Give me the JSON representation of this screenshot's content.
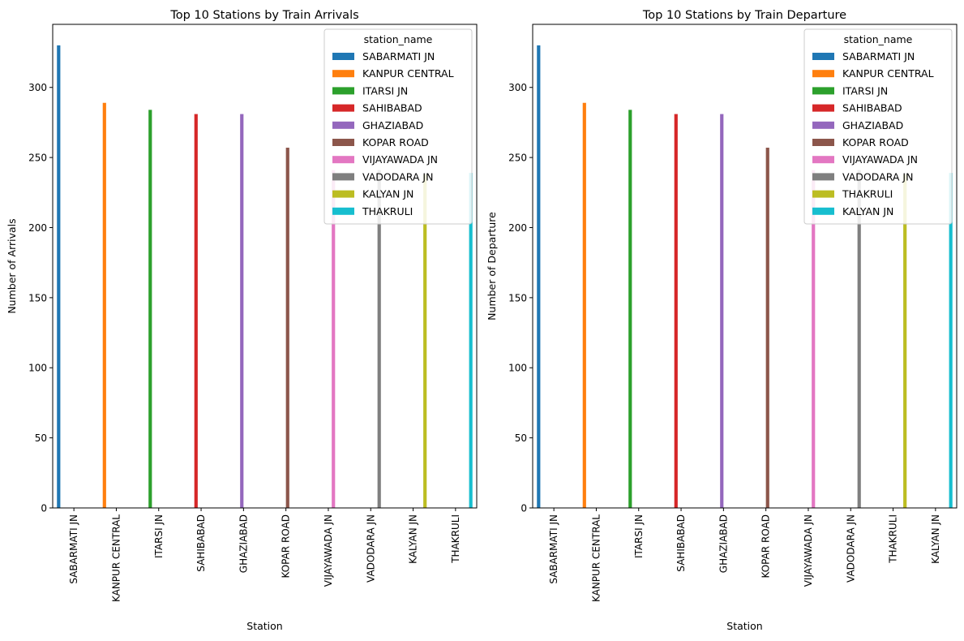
{
  "chart_data": [
    {
      "type": "bar",
      "title": "Top 10 Stations by Train Arrivals",
      "xlabel": "Station",
      "ylabel": "Number of Arrivals",
      "ylim": [
        0,
        345
      ],
      "yticks": [
        0,
        50,
        100,
        150,
        200,
        250,
        300
      ],
      "grid": false,
      "legend": {
        "title": "station_name",
        "placement": "top-right",
        "entries": [
          "SABARMATI JN",
          "KANPUR CENTRAL",
          "ITARSI JN",
          "SAHIBABAD",
          "GHAZIABAD",
          "KOPAR ROAD",
          "VIJAYAWADA JN",
          "VADODARA JN",
          "KALYAN JN",
          "THAKRULI"
        ]
      },
      "categories": [
        "SABARMATI JN",
        "KANPUR CENTRAL",
        "ITARSI JN",
        "SAHIBABAD",
        "GHAZIABAD",
        "KOPAR ROAD",
        "VIJAYAWADA JN",
        "VADODARA JN",
        "KALYAN JN",
        "THAKRULI"
      ],
      "series": [
        {
          "name": "SABARMATI JN",
          "color": "#1f77b4",
          "values": [
            330,
            0,
            0,
            0,
            0,
            0,
            0,
            0,
            0,
            0
          ]
        },
        {
          "name": "KANPUR CENTRAL",
          "color": "#ff7f0e",
          "values": [
            0,
            289,
            0,
            0,
            0,
            0,
            0,
            0,
            0,
            0
          ]
        },
        {
          "name": "ITARSI JN",
          "color": "#2ca02c",
          "values": [
            0,
            0,
            284,
            0,
            0,
            0,
            0,
            0,
            0,
            0
          ]
        },
        {
          "name": "SAHIBABAD",
          "color": "#d62728",
          "values": [
            0,
            0,
            0,
            281,
            0,
            0,
            0,
            0,
            0,
            0
          ]
        },
        {
          "name": "GHAZIABAD",
          "color": "#9467bd",
          "values": [
            0,
            0,
            0,
            0,
            281,
            0,
            0,
            0,
            0,
            0
          ]
        },
        {
          "name": "KOPAR ROAD",
          "color": "#8c564b",
          "values": [
            0,
            0,
            0,
            0,
            0,
            257,
            0,
            0,
            0,
            0
          ]
        },
        {
          "name": "VIJAYAWADA JN",
          "color": "#e377c2",
          "values": [
            0,
            0,
            0,
            0,
            0,
            0,
            241,
            0,
            0,
            0
          ]
        },
        {
          "name": "VADODARA JN",
          "color": "#7f7f7f",
          "values": [
            0,
            0,
            0,
            0,
            0,
            0,
            0,
            241,
            0,
            0
          ]
        },
        {
          "name": "KALYAN JN",
          "color": "#bcbd22",
          "values": [
            0,
            0,
            0,
            0,
            0,
            0,
            0,
            0,
            238,
            0
          ]
        },
        {
          "name": "THAKRULI",
          "color": "#17becf",
          "values": [
            0,
            0,
            0,
            0,
            0,
            0,
            0,
            0,
            0,
            239
          ]
        }
      ]
    },
    {
      "type": "bar",
      "title": "Top 10 Stations by Train Departure",
      "xlabel": "Station",
      "ylabel": "Number of Departure",
      "ylim": [
        0,
        345
      ],
      "yticks": [
        0,
        50,
        100,
        150,
        200,
        250,
        300
      ],
      "grid": false,
      "legend": {
        "title": "station_name",
        "placement": "top-right",
        "entries": [
          "SABARMATI JN",
          "KANPUR CENTRAL",
          "ITARSI JN",
          "SAHIBABAD",
          "GHAZIABAD",
          "KOPAR ROAD",
          "VIJAYAWADA JN",
          "VADODARA JN",
          "THAKRULI",
          "KALYAN JN"
        ]
      },
      "categories": [
        "SABARMATI JN",
        "KANPUR CENTRAL",
        "ITARSI JN",
        "SAHIBABAD",
        "GHAZIABAD",
        "KOPAR ROAD",
        "VIJAYAWADA JN",
        "VADODARA JN",
        "THAKRULI",
        "KALYAN JN"
      ],
      "series": [
        {
          "name": "SABARMATI JN",
          "color": "#1f77b4",
          "values": [
            330,
            0,
            0,
            0,
            0,
            0,
            0,
            0,
            0,
            0
          ]
        },
        {
          "name": "KANPUR CENTRAL",
          "color": "#ff7f0e",
          "values": [
            0,
            289,
            0,
            0,
            0,
            0,
            0,
            0,
            0,
            0
          ]
        },
        {
          "name": "ITARSI JN",
          "color": "#2ca02c",
          "values": [
            0,
            0,
            284,
            0,
            0,
            0,
            0,
            0,
            0,
            0
          ]
        },
        {
          "name": "SAHIBABAD",
          "color": "#d62728",
          "values": [
            0,
            0,
            0,
            281,
            0,
            0,
            0,
            0,
            0,
            0
          ]
        },
        {
          "name": "GHAZIABAD",
          "color": "#9467bd",
          "values": [
            0,
            0,
            0,
            0,
            281,
            0,
            0,
            0,
            0,
            0
          ]
        },
        {
          "name": "KOPAR ROAD",
          "color": "#8c564b",
          "values": [
            0,
            0,
            0,
            0,
            0,
            257,
            0,
            0,
            0,
            0
          ]
        },
        {
          "name": "VIJAYAWADA JN",
          "color": "#e377c2",
          "values": [
            0,
            0,
            0,
            0,
            0,
            0,
            241,
            0,
            0,
            0
          ]
        },
        {
          "name": "VADODARA JN",
          "color": "#7f7f7f",
          "values": [
            0,
            0,
            0,
            0,
            0,
            0,
            0,
            241,
            0,
            0
          ]
        },
        {
          "name": "THAKRULI",
          "color": "#bcbd22",
          "values": [
            0,
            0,
            0,
            0,
            0,
            0,
            0,
            0,
            238,
            0
          ]
        },
        {
          "name": "KALYAN JN",
          "color": "#17becf",
          "values": [
            0,
            0,
            0,
            0,
            0,
            0,
            0,
            0,
            0,
            239
          ]
        }
      ]
    }
  ]
}
